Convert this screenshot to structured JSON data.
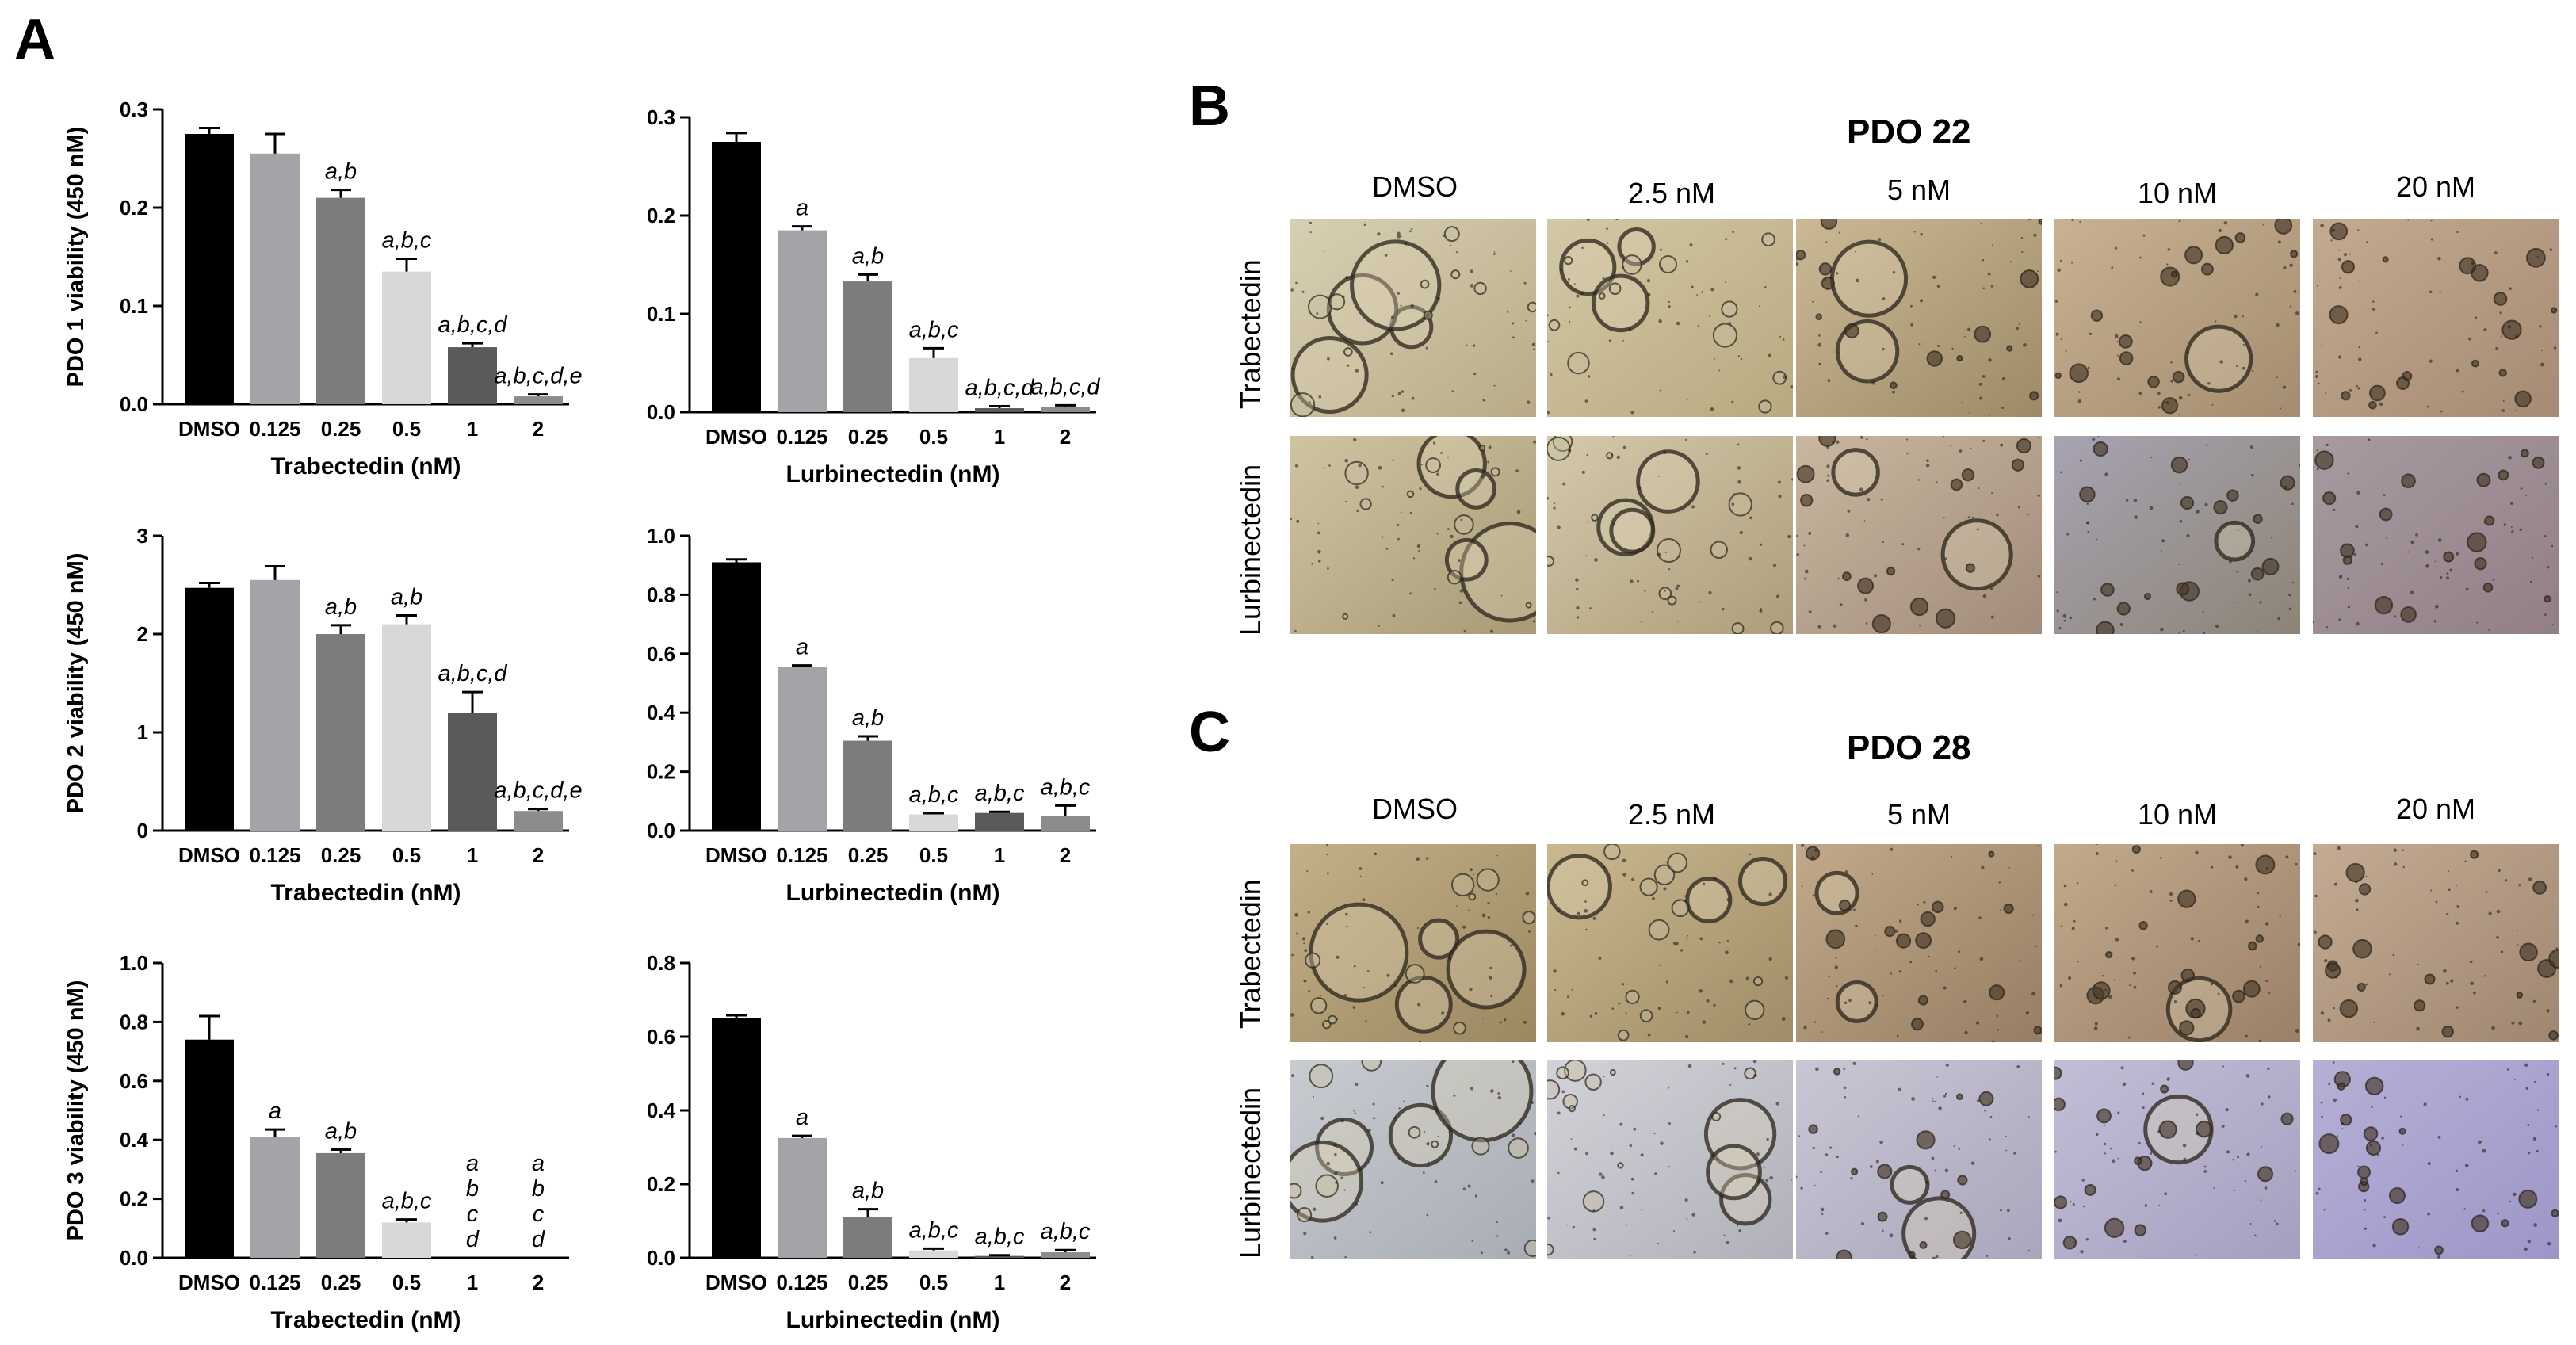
{
  "panels": {
    "A": "A",
    "B": "B",
    "C": "C"
  },
  "chart_data": [
    {
      "type": "bar",
      "ylabel": "PDO 1 viability (450 nM)",
      "xlabel": "Trabectedin (nM)",
      "categories": [
        "DMSO",
        "0.125",
        "0.25",
        "0.5",
        "1",
        "2"
      ],
      "values": [
        0.275,
        0.255,
        0.21,
        0.135,
        0.058,
        0.008
      ],
      "errors": [
        0.006,
        0.02,
        0.008,
        0.013,
        0.004,
        0.002
      ],
      "annotations": [
        "",
        "",
        "a,b",
        "a,b,c",
        "a,b,c,d",
        "a,b,c,d,e"
      ],
      "ylim": [
        0,
        0.3
      ],
      "yticks": [
        "0.0",
        "0.1",
        "0.2",
        "0.3"
      ],
      "colors": [
        "#000000",
        "#a4a4a8",
        "#7c7c7e",
        "#d8d8d8",
        "#5a5a5a",
        "#8c8c8c"
      ]
    },
    {
      "type": "bar",
      "ylabel": "",
      "xlabel": "Lurbinectedin (nM)",
      "categories": [
        "DMSO",
        "0.125",
        "0.25",
        "0.5",
        "1",
        "2"
      ],
      "values": [
        0.275,
        0.185,
        0.133,
        0.055,
        0.004,
        0.005
      ],
      "errors": [
        0.009,
        0.004,
        0.007,
        0.01,
        0.002,
        0.002
      ],
      "annotations": [
        "",
        "a",
        "a,b",
        "a,b,c",
        "a,b,c,d",
        "a,b,c,d"
      ],
      "ylim": [
        0,
        0.3
      ],
      "yticks": [
        "0.0",
        "0.1",
        "0.2",
        "0.3"
      ],
      "colors": [
        "#000000",
        "#a4a4a8",
        "#7c7c7e",
        "#d8d8d8",
        "#5a5a5a",
        "#8c8c8c"
      ]
    },
    {
      "type": "bar",
      "ylabel": "PDO 2 viability (450 nM)",
      "xlabel": "Trabectedin (nM)",
      "categories": [
        "DMSO",
        "0.125",
        "0.25",
        "0.5",
        "1",
        "2"
      ],
      "values": [
        2.47,
        2.55,
        2.0,
        2.1,
        1.2,
        0.2
      ],
      "errors": [
        0.05,
        0.14,
        0.09,
        0.09,
        0.21,
        0.02
      ],
      "annotations": [
        "",
        "",
        "a,b",
        "a,b",
        "a,b,c,d",
        "a,b,c,d,e"
      ],
      "ylim": [
        0,
        3
      ],
      "yticks": [
        "0",
        "1",
        "2",
        "3"
      ],
      "colors": [
        "#000000",
        "#a4a4a8",
        "#7c7c7e",
        "#d8d8d8",
        "#5a5a5a",
        "#8c8c8c"
      ]
    },
    {
      "type": "bar",
      "ylabel": "",
      "xlabel": "Lurbinectedin (nM)",
      "categories": [
        "DMSO",
        "0.125",
        "0.25",
        "0.5",
        "1",
        "2"
      ],
      "values": [
        0.91,
        0.555,
        0.305,
        0.055,
        0.06,
        0.05
      ],
      "errors": [
        0.01,
        0.005,
        0.015,
        0.004,
        0.004,
        0.035
      ],
      "annotations": [
        "",
        "a",
        "a,b",
        "a,b,c",
        "a,b,c",
        "a,b,c"
      ],
      "ylim": [
        0,
        1.0
      ],
      "yticks": [
        "0.0",
        "0.2",
        "0.4",
        "0.6",
        "0.8",
        "1.0"
      ],
      "colors": [
        "#000000",
        "#a4a4a8",
        "#7c7c7e",
        "#d8d8d8",
        "#5a5a5a",
        "#8c8c8c"
      ]
    },
    {
      "type": "bar",
      "ylabel": "PDO 3 viability (450 nM)",
      "xlabel": "Trabectedin (nM)",
      "categories": [
        "DMSO",
        "0.125",
        "0.25",
        "0.5",
        "1",
        "2"
      ],
      "values": [
        0.74,
        0.41,
        0.355,
        0.12,
        0.0,
        0.0
      ],
      "errors": [
        0.08,
        0.025,
        0.012,
        0.01,
        0.0,
        0.0
      ],
      "annotations": [
        "",
        "a",
        "a,b",
        "a,b,c",
        "a\nb\nc\nd",
        "a\nb\nc\nd"
      ],
      "ylim": [
        0,
        1.0
      ],
      "yticks": [
        "0.0",
        "0.2",
        "0.4",
        "0.6",
        "0.8",
        "1.0"
      ],
      "colors": [
        "#000000",
        "#a4a4a8",
        "#7c7c7e",
        "#d8d8d8",
        "#5a5a5a",
        "#8c8c8c"
      ]
    },
    {
      "type": "bar",
      "ylabel": "",
      "xlabel": "Lurbinectedin (nM)",
      "categories": [
        "DMSO",
        "0.125",
        "0.25",
        "0.5",
        "1",
        "2"
      ],
      "values": [
        0.65,
        0.325,
        0.11,
        0.02,
        0.005,
        0.015
      ],
      "errors": [
        0.008,
        0.006,
        0.022,
        0.005,
        0.002,
        0.006
      ],
      "annotations": [
        "",
        "a",
        "a,b",
        "a,b,c",
        "a,b,c",
        "a,b,c"
      ],
      "ylim": [
        0,
        0.8
      ],
      "yticks": [
        "0.0",
        "0.2",
        "0.4",
        "0.6",
        "0.8"
      ],
      "colors": [
        "#000000",
        "#a4a4a8",
        "#7c7c7e",
        "#d8d8d8",
        "#5a5a5a",
        "#8c8c8c"
      ]
    }
  ],
  "micrographs": {
    "B": {
      "title": "PDO 22",
      "columns": [
        "DMSO",
        "2.5 nM",
        "5 nM",
        "10 nM",
        "20 nM"
      ],
      "rows": [
        "Trabectedin",
        "Lurbinectedin"
      ]
    },
    "C": {
      "title": "PDO 28",
      "columns": [
        "DMSO",
        "2.5 nM",
        "5 nM",
        "10 nM",
        "20 nM"
      ],
      "rows": [
        "Trabectedin",
        "Lurbinectedin"
      ]
    }
  }
}
